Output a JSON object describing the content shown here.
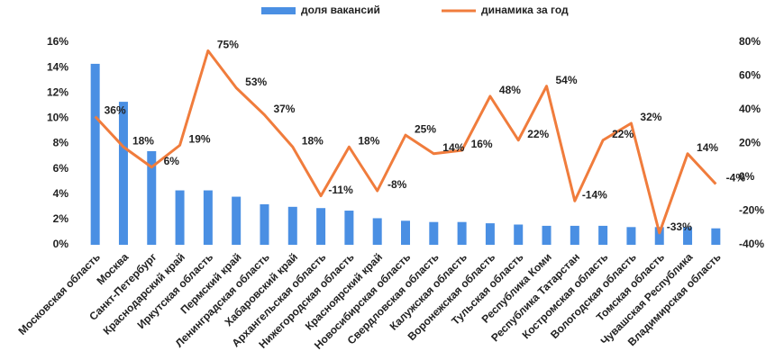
{
  "chart_data": {
    "type": "bar-line",
    "categories": [
      "Московская область",
      "Москва",
      "Санкт-Петербург",
      "Краснодарский край",
      "Иркутская область",
      "Пермский край",
      "Ленинградская область",
      "Хабаровский край",
      "Архангельская область",
      "Нижегородская область",
      "Красноярский край",
      "Новосибирская область",
      "Свердловская область",
      "Калужская область",
      "Воронежская область",
      "Тульская область",
      "Республика Коми",
      "Республика Татарстан",
      "Костромская область",
      "Вологодская область",
      "Томская область",
      "Чувашская Республика",
      "Владимирская область"
    ],
    "series": [
      {
        "name": "доля вакансий",
        "type": "bar",
        "color": "#4a8fe3",
        "values": [
          14.3,
          11.3,
          7.4,
          4.3,
          4.3,
          3.8,
          3.2,
          3.0,
          2.9,
          2.7,
          2.1,
          1.9,
          1.8,
          1.8,
          1.7,
          1.6,
          1.5,
          1.5,
          1.5,
          1.4,
          1.4,
          1.4,
          1.3
        ]
      },
      {
        "name": "динамика за год",
        "type": "line",
        "axis": "y2",
        "color": "#f07c3c",
        "values": [
          36,
          18,
          6,
          19,
          75,
          53,
          37,
          18,
          -11,
          18,
          -8,
          25,
          14,
          16,
          48,
          22,
          54,
          -14,
          22,
          32,
          -33,
          14,
          -4
        ],
        "value_labels": [
          "36%",
          "18%",
          "6%",
          "19%",
          "75%",
          "53%",
          "37%",
          "18%",
          "-11%",
          "18%",
          "-8%",
          "25%",
          "14%",
          "16%",
          "48%",
          "22%",
          "54%",
          "-14%",
          "22%",
          "32%",
          "-33%",
          "14%",
          "-4%"
        ]
      }
    ],
    "ylim": [
      0,
      16
    ],
    "yticks": [
      {
        "value": 0,
        "label": "0%"
      },
      {
        "value": 2,
        "label": "2%"
      },
      {
        "value": 4,
        "label": "4%"
      },
      {
        "value": 6,
        "label": "6%"
      },
      {
        "value": 8,
        "label": "8%"
      },
      {
        "value": 10,
        "label": "10%"
      },
      {
        "value": 12,
        "label": "12%"
      },
      {
        "value": 14,
        "label": "14%"
      },
      {
        "value": 16,
        "label": "16%"
      }
    ],
    "y2lim": [
      -40,
      80
    ],
    "y2ticks": [
      {
        "value": -40,
        "label": "-40%"
      },
      {
        "value": -20,
        "label": "-20%"
      },
      {
        "value": 0,
        "label": "0%"
      },
      {
        "value": 20,
        "label": "20%"
      },
      {
        "value": 40,
        "label": "40%"
      },
      {
        "value": 60,
        "label": "60%"
      },
      {
        "value": 80,
        "label": "80%"
      }
    ],
    "legend": "top",
    "grid": false
  }
}
